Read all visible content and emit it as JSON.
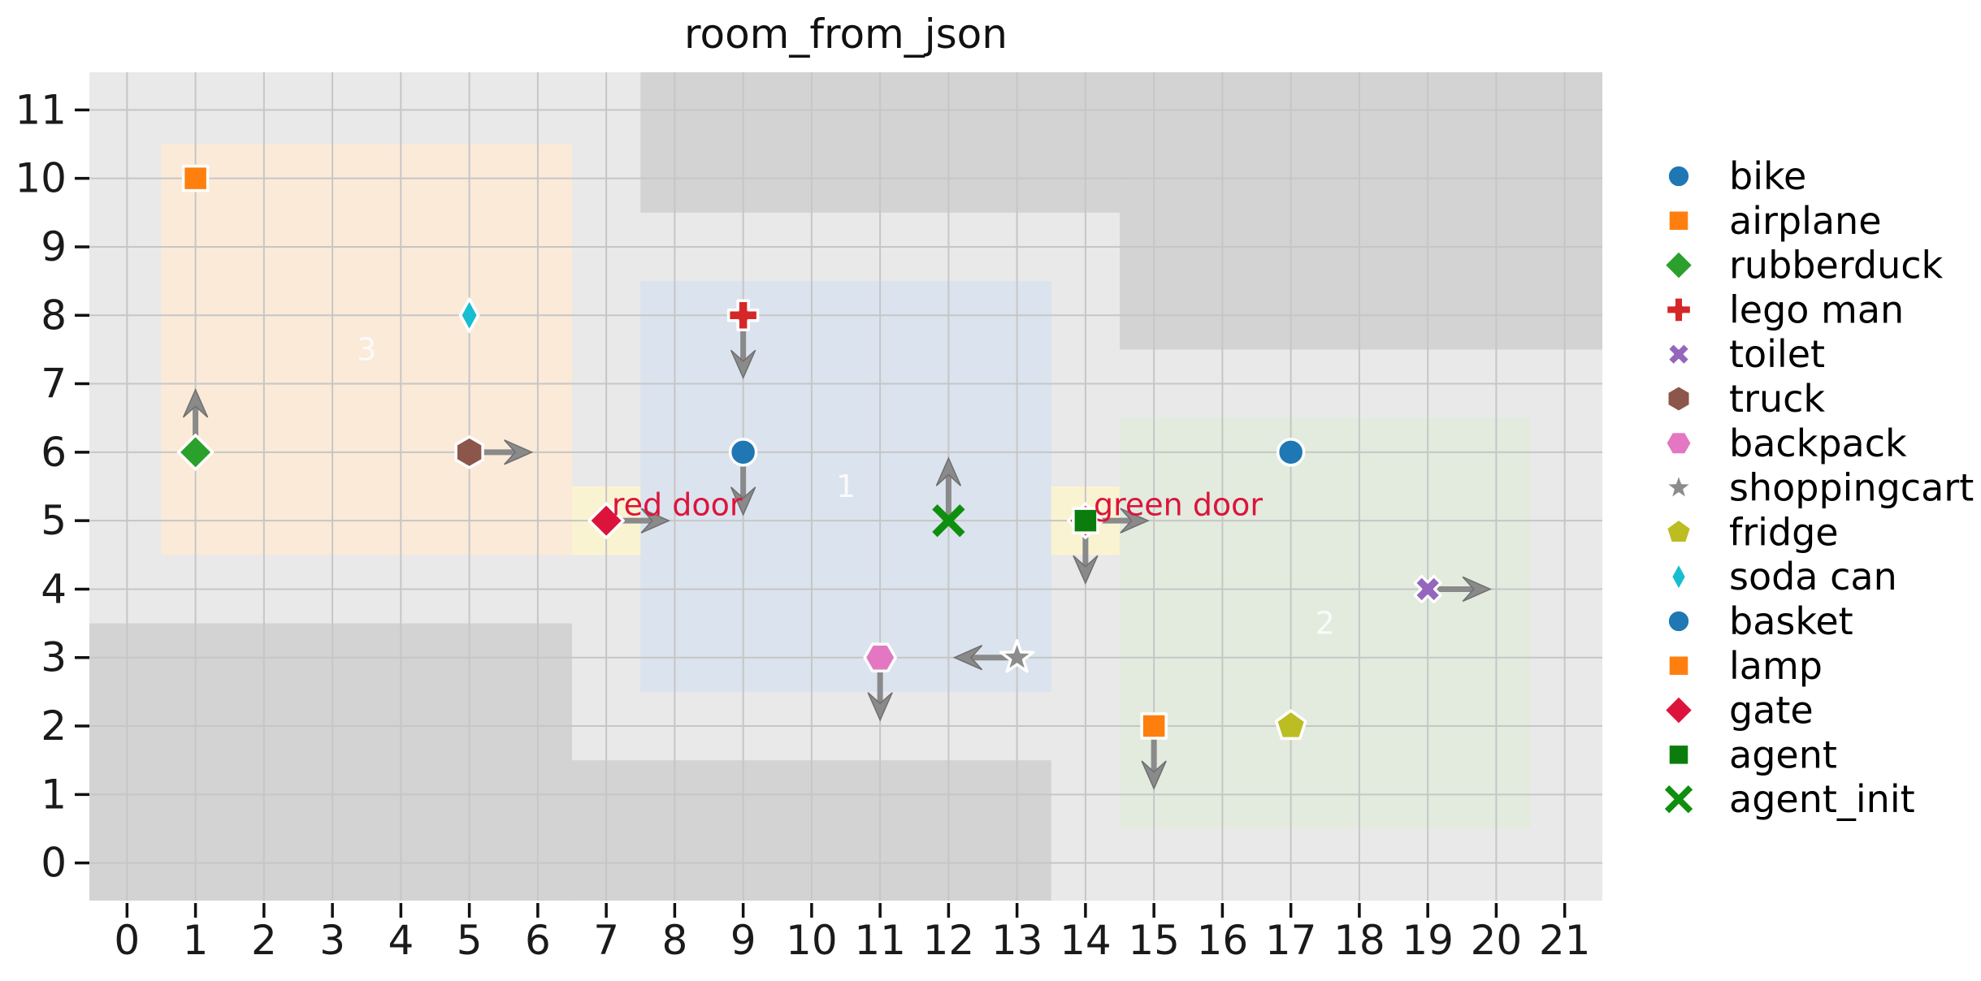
{
  "chart_data": {
    "type": "scatter",
    "title": "room_from_json",
    "xlabel": "",
    "ylabel": "",
    "xlim": [
      -0.55,
      21.55
    ],
    "ylim": [
      -0.55,
      11.55
    ],
    "x_ticks": [
      0,
      1,
      2,
      3,
      4,
      5,
      6,
      7,
      8,
      9,
      10,
      11,
      12,
      13,
      14,
      15,
      16,
      17,
      18,
      19,
      20,
      21
    ],
    "y_ticks": [
      0,
      1,
      2,
      3,
      4,
      5,
      6,
      7,
      8,
      9,
      10,
      11
    ],
    "grid": true,
    "legend_position": "right-outside",
    "colors": {
      "figure_background": "#ffffff",
      "plot_background": "#e9e9e9",
      "wall": "#d3d3d3",
      "gridline": "#c6c6c6",
      "door_cell": "#faf3d2",
      "door_label": "#dc143c",
      "arrow_fill": "#8a8a8a",
      "arrow_edge": "#6f6f6f",
      "room_label": "#fafafa",
      "tick_label": "#1a1a1a"
    },
    "walls": [
      {
        "name": "wall-top-middle",
        "x": [
          7.5,
          14.5
        ],
        "y": [
          9.5,
          11.55
        ]
      },
      {
        "name": "wall-top-right",
        "x": [
          14.5,
          21.55
        ],
        "y": [
          7.5,
          11.55
        ]
      },
      {
        "name": "wall-bottom-left",
        "x": [
          -0.55,
          6.5
        ],
        "y": [
          -0.55,
          3.5
        ]
      },
      {
        "name": "wall-bottom-middle",
        "x": [
          6.5,
          13.5
        ],
        "y": [
          -0.55,
          1.5
        ]
      }
    ],
    "rooms": [
      {
        "id": "3",
        "x": [
          0.5,
          6.5
        ],
        "y": [
          4.5,
          10.5
        ],
        "fill": "#fbead8",
        "label_at": [
          3.5,
          7.5
        ]
      },
      {
        "id": "1",
        "x": [
          7.5,
          13.5
        ],
        "y": [
          2.5,
          8.5
        ],
        "fill": "#dbe3ee",
        "label_at": [
          10.5,
          5.5
        ]
      },
      {
        "id": "2",
        "x": [
          14.5,
          20.5
        ],
        "y": [
          0.5,
          6.5
        ],
        "fill": "#e2ebde",
        "label_at": [
          17.5,
          3.5
        ]
      }
    ],
    "doors": [
      {
        "label": "red door",
        "cell_x": [
          6.5,
          7.5
        ],
        "cell_y": [
          4.5,
          5.5
        ],
        "label_at": [
          7.08,
          5.08
        ]
      },
      {
        "label": "green door",
        "cell_x": [
          13.5,
          14.5
        ],
        "cell_y": [
          4.5,
          5.5
        ],
        "label_at": [
          14.12,
          5.08
        ]
      }
    ],
    "objects": [
      {
        "name": "airplane",
        "x": 1,
        "y": 10,
        "marker": "square",
        "color": "#ff7f0e",
        "arrow": null
      },
      {
        "name": "soda can",
        "x": 5,
        "y": 8,
        "marker": "thin_diamond",
        "color": "#17becf",
        "arrow": null
      },
      {
        "name": "rubberduck",
        "x": 1,
        "y": 6,
        "marker": "diamond",
        "color": "#2ca02c",
        "arrow": "up"
      },
      {
        "name": "truck",
        "x": 5,
        "y": 6,
        "marker": "hexagon_pointy",
        "color": "#8c564b",
        "arrow": "right"
      },
      {
        "name": "lego man",
        "x": 9,
        "y": 8,
        "marker": "plus",
        "color": "#d62728",
        "arrow": "down"
      },
      {
        "name": "bike",
        "x": 9,
        "y": 6,
        "marker": "circle",
        "color": "#1f77b4",
        "arrow": "down"
      },
      {
        "name": "gate",
        "x": 7,
        "y": 5,
        "marker": "diamond",
        "color": "#dc143c",
        "arrow": "right"
      },
      {
        "name": "agent_init",
        "x": 12,
        "y": 5,
        "marker": "x_thin",
        "color": "#0f8f0f",
        "arrow": "up"
      },
      {
        "name": "gate",
        "x": 14,
        "y": 5,
        "marker": "diamond",
        "color": "#dc143c",
        "arrow": "right"
      },
      {
        "name": "agent",
        "x": 14,
        "y": 5,
        "marker": "square",
        "color": "#0c7d0c",
        "arrow": "down"
      },
      {
        "name": "basket",
        "x": 17,
        "y": 6,
        "marker": "circle",
        "color": "#1f77b4",
        "arrow": null
      },
      {
        "name": "toilet",
        "x": 19,
        "y": 4,
        "marker": "x_thick",
        "color": "#9467bd",
        "arrow": "right"
      },
      {
        "name": "backpack",
        "x": 11,
        "y": 3,
        "marker": "hexagon_flat",
        "color": "#e377c2",
        "arrow": "down"
      },
      {
        "name": "shoppingcart",
        "x": 13,
        "y": 3,
        "marker": "star",
        "color": "#8c8c8c",
        "arrow": "left"
      },
      {
        "name": "lamp",
        "x": 15,
        "y": 2,
        "marker": "square",
        "color": "#ff7f0e",
        "arrow": "down"
      },
      {
        "name": "fridge",
        "x": 17,
        "y": 2,
        "marker": "pentagon",
        "color": "#bcbd22",
        "arrow": null
      }
    ],
    "legend": [
      {
        "label": "bike",
        "marker": "circle",
        "color": "#1f77b4"
      },
      {
        "label": "airplane",
        "marker": "square",
        "color": "#ff7f0e"
      },
      {
        "label": "rubberduck",
        "marker": "diamond",
        "color": "#2ca02c"
      },
      {
        "label": "lego man",
        "marker": "plus",
        "color": "#d62728"
      },
      {
        "label": "toilet",
        "marker": "x_thick",
        "color": "#9467bd"
      },
      {
        "label": "truck",
        "marker": "hexagon_pointy",
        "color": "#8c564b"
      },
      {
        "label": "backpack",
        "marker": "hexagon_flat",
        "color": "#e377c2"
      },
      {
        "label": "shoppingcart",
        "marker": "star",
        "color": "#8c8c8c"
      },
      {
        "label": "fridge",
        "marker": "pentagon",
        "color": "#bcbd22"
      },
      {
        "label": "soda can",
        "marker": "thin_diamond",
        "color": "#17becf"
      },
      {
        "label": "basket",
        "marker": "circle",
        "color": "#1f77b4"
      },
      {
        "label": "lamp",
        "marker": "square",
        "color": "#ff7f0e"
      },
      {
        "label": "gate",
        "marker": "diamond",
        "color": "#dc143c"
      },
      {
        "label": "agent",
        "marker": "square",
        "color": "#0c7d0c"
      },
      {
        "label": "agent_init",
        "marker": "x_thin",
        "color": "#0f8f0f"
      }
    ]
  }
}
